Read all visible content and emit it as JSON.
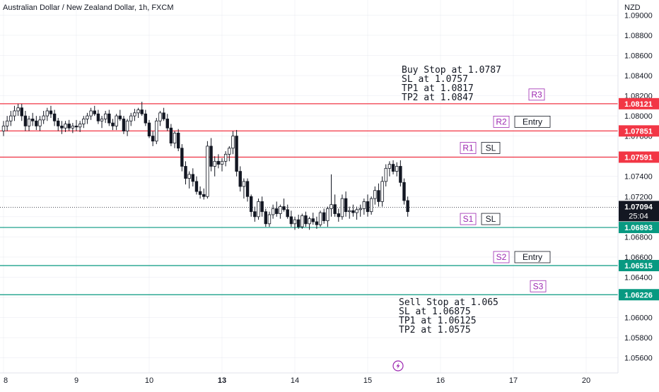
{
  "header": {
    "title": "Australian Dollar / New Zealand Dollar, 1h, FXCM",
    "currency": "NZD"
  },
  "colors": {
    "resistance": "#f23645",
    "support": "#089981",
    "label_purple": "#9c27b0",
    "candle": "#131722",
    "current_tag": "#131722",
    "grid": "#e0e3eb"
  },
  "icons": {
    "lightning": "lightning-icon"
  },
  "chart_data": {
    "type": "candlestick",
    "symbol": "AUDNZD",
    "timeframe": "1h",
    "y_axis": {
      "ticks": [
        "1.09000",
        "1.08800",
        "1.08600",
        "1.08400",
        "1.08200",
        "1.08000",
        "1.07800",
        "1.07600",
        "1.07400",
        "1.07200",
        "1.07000",
        "1.06800",
        "1.06600",
        "1.06400",
        "1.06200",
        "1.06000",
        "1.05800",
        "1.05600"
      ],
      "ylim": [
        1.0545,
        1.0915
      ]
    },
    "x_axis": {
      "ticks": [
        {
          "label": "8",
          "index": 0
        },
        {
          "label": "9",
          "index": 20
        },
        {
          "label": "10",
          "index": 40
        },
        {
          "label": "13",
          "index": 60
        },
        {
          "label": "14",
          "index": 80
        },
        {
          "label": "15",
          "index": 100
        },
        {
          "label": "16",
          "index": 120
        },
        {
          "label": "17",
          "index": 140
        },
        {
          "label": "20",
          "index": 160
        }
      ]
    },
    "levels": [
      {
        "name": "R3",
        "price": 1.08121,
        "label": "1.08121",
        "kind": "resistance",
        "tags": []
      },
      {
        "name": "R2",
        "price": 1.07851,
        "label": "1.07851",
        "kind": "resistance",
        "tags": [
          "Entry"
        ]
      },
      {
        "name": "R1",
        "price": 1.07591,
        "label": "1.07591",
        "kind": "resistance",
        "tags": [
          "SL"
        ]
      },
      {
        "name": "S1",
        "price": 1.06893,
        "label": "1.06893",
        "kind": "support",
        "tags": [
          "SL"
        ]
      },
      {
        "name": "S2",
        "price": 1.06515,
        "label": "1.06515",
        "kind": "support",
        "tags": [
          "Entry"
        ]
      },
      {
        "name": "S3",
        "price": 1.06226,
        "label": "1.06226",
        "kind": "support",
        "tags": []
      }
    ],
    "current_price": {
      "price": 1.07094,
      "label": "1.07094",
      "countdown": "25:04"
    },
    "annotations": [
      {
        "lines": [
          "Buy Stop at 1.0787",
          "SL at 1.0757",
          "TP1 at 1.0817",
          "TP2 at 1.0847"
        ]
      },
      {
        "lines": [
          "Sell Stop at 1.065",
          "SL at 1.06875",
          "TP1 at 1.06125",
          "TP2 at 1.0575"
        ]
      }
    ],
    "candles": [
      [
        1.0785,
        1.0795,
        1.078,
        1.079
      ],
      [
        1.079,
        1.08,
        1.0785,
        1.0795
      ],
      [
        1.0795,
        1.0805,
        1.079,
        1.08
      ],
      [
        1.08,
        1.081,
        1.0795,
        1.0805
      ],
      [
        1.0805,
        1.0812,
        1.08,
        1.0808
      ],
      [
        1.0808,
        1.0812,
        1.0795,
        1.08
      ],
      [
        1.08,
        1.0805,
        1.0785,
        1.079
      ],
      [
        1.079,
        1.08,
        1.0785,
        1.0797
      ],
      [
        1.0797,
        1.0803,
        1.079,
        1.0795
      ],
      [
        1.0795,
        1.08,
        1.0786,
        1.079
      ],
      [
        1.079,
        1.08,
        1.0785,
        1.0796
      ],
      [
        1.0796,
        1.0805,
        1.0792,
        1.08
      ],
      [
        1.08,
        1.0808,
        1.0795,
        1.0805
      ],
      [
        1.0805,
        1.081,
        1.0798,
        1.0802
      ],
      [
        1.0802,
        1.0806,
        1.079,
        1.0795
      ],
      [
        1.0795,
        1.0798,
        1.0785,
        1.079
      ],
      [
        1.079,
        1.0795,
        1.0782,
        1.0788
      ],
      [
        1.0788,
        1.0795,
        1.0784,
        1.0792
      ],
      [
        1.0792,
        1.0796,
        1.0785,
        1.0788
      ],
      [
        1.0788,
        1.0793,
        1.0783,
        1.079
      ],
      [
        1.079,
        1.0796,
        1.0785,
        1.0789
      ],
      [
        1.0789,
        1.0795,
        1.0784,
        1.0792
      ],
      [
        1.0792,
        1.08,
        1.0788,
        1.0797
      ],
      [
        1.0797,
        1.0803,
        1.0792,
        1.08
      ],
      [
        1.08,
        1.0808,
        1.0796,
        1.0805
      ],
      [
        1.0805,
        1.081,
        1.08,
        1.0802
      ],
      [
        1.0802,
        1.0806,
        1.0792,
        1.0795
      ],
      [
        1.0795,
        1.08,
        1.0788,
        1.0797
      ],
      [
        1.0797,
        1.0805,
        1.0793,
        1.0802
      ],
      [
        1.0802,
        1.0806,
        1.079,
        1.0793
      ],
      [
        1.0793,
        1.0797,
        1.0786,
        1.079
      ],
      [
        1.079,
        1.0802,
        1.0786,
        1.08
      ],
      [
        1.08,
        1.0806,
        1.0795,
        1.0797
      ],
      [
        1.0797,
        1.08,
        1.0782,
        1.0785
      ],
      [
        1.0785,
        1.0797,
        1.078,
        1.0795
      ],
      [
        1.0795,
        1.0803,
        1.079,
        1.08
      ],
      [
        1.08,
        1.0807,
        1.0795,
        1.0803
      ],
      [
        1.0803,
        1.0808,
        1.0798,
        1.0806
      ],
      [
        1.0806,
        1.0814,
        1.08,
        1.0802
      ],
      [
        1.0802,
        1.0806,
        1.079,
        1.0793
      ],
      [
        1.0793,
        1.0796,
        1.0778,
        1.078
      ],
      [
        1.078,
        1.0785,
        1.077,
        1.0775
      ],
      [
        1.0775,
        1.0798,
        1.0772,
        1.0795
      ],
      [
        1.0795,
        1.0805,
        1.079,
        1.0803
      ],
      [
        1.0803,
        1.0808,
        1.0795,
        1.0797
      ],
      [
        1.0797,
        1.0802,
        1.0785,
        1.0788
      ],
      [
        1.0788,
        1.0792,
        1.077,
        1.0773
      ],
      [
        1.0773,
        1.0785,
        1.0768,
        1.0783
      ],
      [
        1.0783,
        1.0787,
        1.0765,
        1.0768
      ],
      [
        1.0768,
        1.0772,
        1.0745,
        1.075
      ],
      [
        1.075,
        1.0755,
        1.0732,
        1.0738
      ],
      [
        1.0738,
        1.0745,
        1.0728,
        1.0742
      ],
      [
        1.0742,
        1.0748,
        1.073,
        1.0735
      ],
      [
        1.0735,
        1.074,
        1.0722,
        1.0725
      ],
      [
        1.0725,
        1.073,
        1.0718,
        1.0722
      ],
      [
        1.0722,
        1.0728,
        1.0717,
        1.072
      ],
      [
        1.072,
        1.0775,
        1.0718,
        1.077
      ],
      [
        1.077,
        1.0778,
        1.0745,
        1.075
      ],
      [
        1.075,
        1.076,
        1.074,
        1.0755
      ],
      [
        1.0755,
        1.0762,
        1.0748,
        1.0752
      ],
      [
        1.0752,
        1.0758,
        1.0745,
        1.0755
      ],
      [
        1.0755,
        1.0765,
        1.075,
        1.0762
      ],
      [
        1.0762,
        1.077,
        1.0755,
        1.0768
      ],
      [
        1.0768,
        1.0785,
        1.0762,
        1.078
      ],
      [
        1.078,
        1.0786,
        1.074,
        1.0745
      ],
      [
        1.0745,
        1.075,
        1.0725,
        1.073
      ],
      [
        1.073,
        1.0738,
        1.0718,
        1.0735
      ],
      [
        1.0735,
        1.0738,
        1.0715,
        1.072
      ],
      [
        1.072,
        1.0722,
        1.07,
        1.0705
      ],
      [
        1.0705,
        1.071,
        1.0695,
        1.07
      ],
      [
        1.07,
        1.0718,
        1.0697,
        1.0715
      ],
      [
        1.0715,
        1.072,
        1.07,
        1.0705
      ],
      [
        1.0705,
        1.0708,
        1.069,
        1.0693
      ],
      [
        1.0693,
        1.0705,
        1.069,
        1.0702
      ],
      [
        1.0702,
        1.0712,
        1.0698,
        1.0708
      ],
      [
        1.0708,
        1.0715,
        1.07,
        1.0703
      ],
      [
        1.0703,
        1.0712,
        1.0698,
        1.071
      ],
      [
        1.071,
        1.0718,
        1.0705,
        1.0707
      ],
      [
        1.0707,
        1.0712,
        1.0698,
        1.07
      ],
      [
        1.07,
        1.0706,
        1.069,
        1.0693
      ],
      [
        1.0693,
        1.07,
        1.0687,
        1.0697
      ],
      [
        1.0697,
        1.0702,
        1.0688,
        1.069
      ],
      [
        1.069,
        1.0703,
        1.0688,
        1.0701
      ],
      [
        1.0701,
        1.0705,
        1.069,
        1.0693
      ],
      [
        1.0693,
        1.07,
        1.0687,
        1.0698
      ],
      [
        1.0698,
        1.0704,
        1.0692,
        1.0695
      ],
      [
        1.0695,
        1.07,
        1.0688,
        1.0692
      ],
      [
        1.0692,
        1.0706,
        1.069,
        1.0704
      ],
      [
        1.0704,
        1.0708,
        1.0693,
        1.0696
      ],
      [
        1.0696,
        1.071,
        1.069,
        1.0708
      ],
      [
        1.0708,
        1.0742,
        1.07,
        1.0712
      ],
      [
        1.0712,
        1.0722,
        1.07,
        1.0703
      ],
      [
        1.0703,
        1.0708,
        1.0695,
        1.07
      ],
      [
        1.07,
        1.0722,
        1.0697,
        1.0718
      ],
      [
        1.0718,
        1.0725,
        1.07,
        1.0705
      ],
      [
        1.0705,
        1.071,
        1.0698,
        1.0706
      ],
      [
        1.0706,
        1.0712,
        1.07,
        1.0704
      ],
      [
        1.0704,
        1.071,
        1.0697,
        1.0707
      ],
      [
        1.0707,
        1.0712,
        1.07,
        1.0708
      ],
      [
        1.0708,
        1.0718,
        1.0702,
        1.0715
      ],
      [
        1.0715,
        1.0722,
        1.07,
        1.0705
      ],
      [
        1.0705,
        1.072,
        1.0702,
        1.0718
      ],
      [
        1.0718,
        1.073,
        1.0712,
        1.0726
      ],
      [
        1.0726,
        1.0733,
        1.071,
        1.0715
      ],
      [
        1.0715,
        1.074,
        1.071,
        1.0735
      ],
      [
        1.0735,
        1.0752,
        1.073,
        1.0748
      ],
      [
        1.0748,
        1.0755,
        1.074,
        1.0752
      ],
      [
        1.0752,
        1.0756,
        1.0742,
        1.0745
      ],
      [
        1.0745,
        1.0754,
        1.074,
        1.075
      ],
      [
        1.075,
        1.0756,
        1.073,
        1.0734
      ],
      [
        1.0734,
        1.0738,
        1.0712,
        1.0716
      ],
      [
        1.0716,
        1.072,
        1.07,
        1.0705
      ]
    ]
  }
}
